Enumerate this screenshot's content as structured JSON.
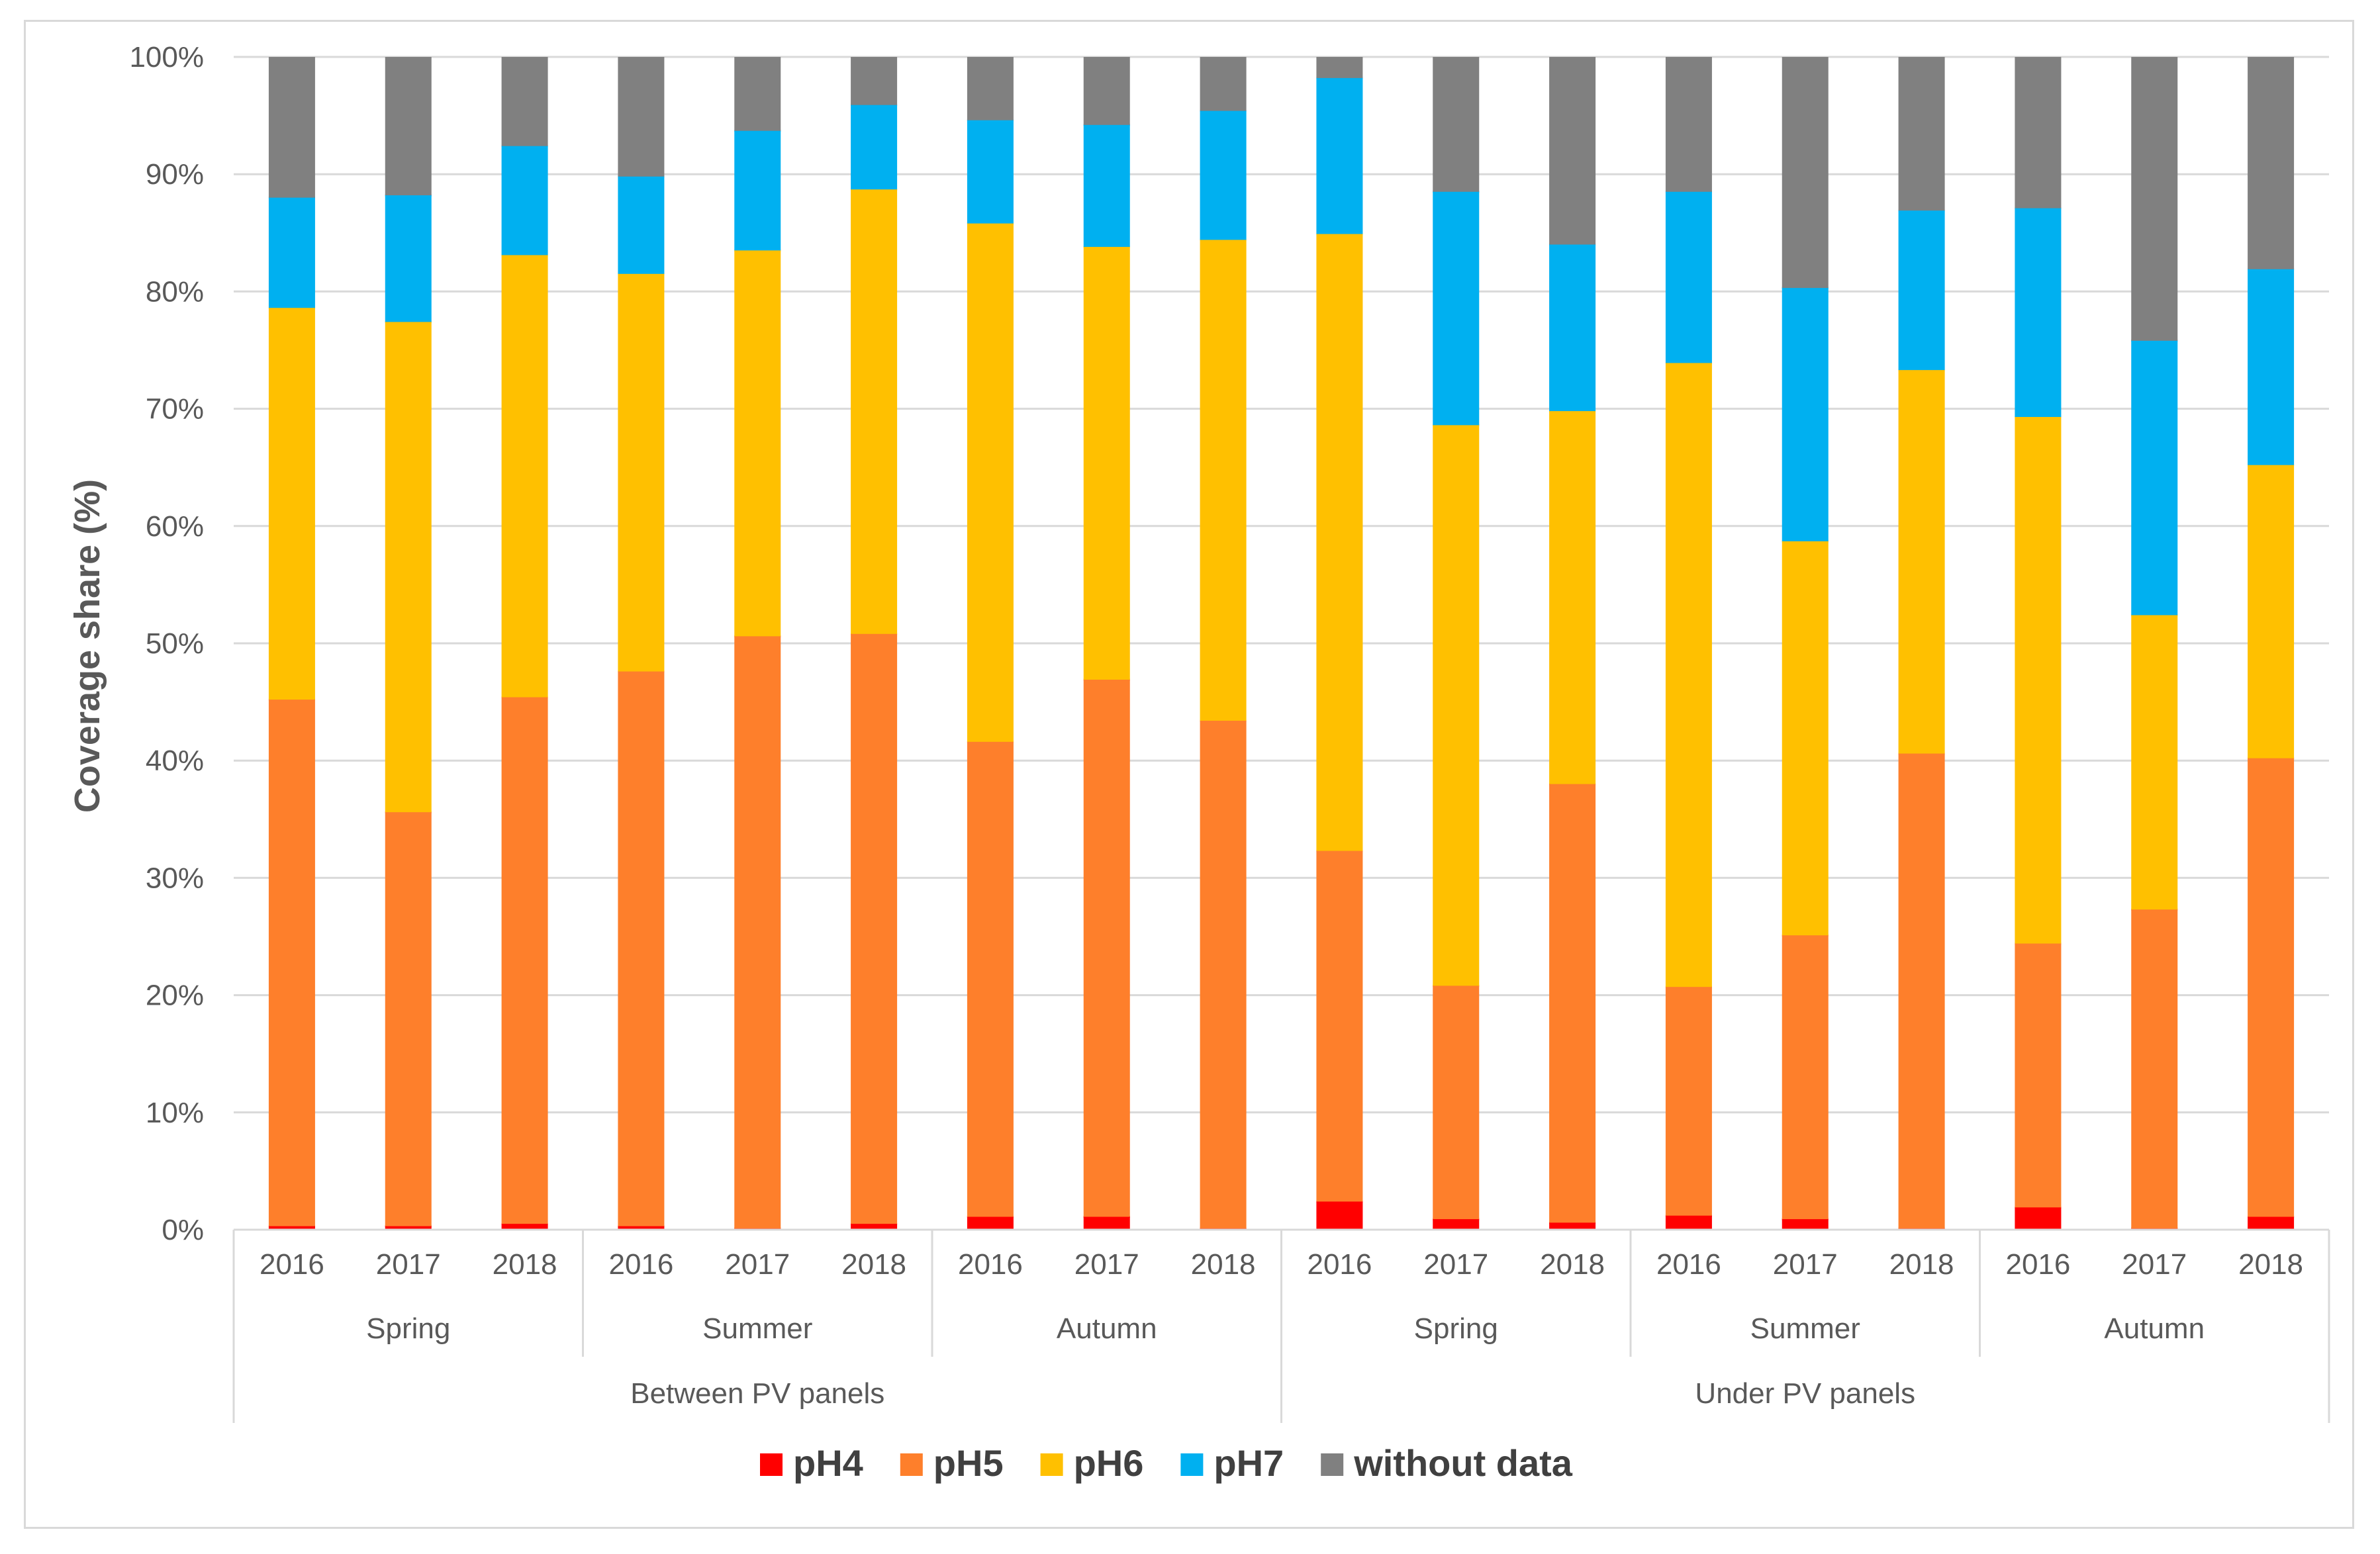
{
  "chart_data": {
    "type": "stacked-bar",
    "title": "",
    "xlabel": "",
    "ylabel": "Coverage share (%)",
    "ylim": [
      0,
      100
    ],
    "yticks": [
      "0%",
      "10%",
      "20%",
      "30%",
      "40%",
      "50%",
      "60%",
      "70%",
      "80%",
      "90%",
      "100%"
    ],
    "grid": true,
    "legend_position": "bottom",
    "categories": [
      "2016",
      "2017",
      "2018",
      "2016",
      "2017",
      "2018",
      "2016",
      "2017",
      "2018",
      "2016",
      "2017",
      "2018",
      "2016",
      "2017",
      "2018",
      "2016",
      "2017",
      "2018"
    ],
    "seasons": [
      "Spring",
      "Summer",
      "Autumn",
      "Spring",
      "Summer",
      "Autumn"
    ],
    "locations": [
      "Between PV panels",
      "Under PV panels"
    ],
    "series": [
      {
        "name": "pH4",
        "color": "#ff0000",
        "values": [
          0.3,
          0.3,
          0.5,
          0.3,
          0.1,
          0.5,
          1.1,
          1.1,
          0.1,
          2.4,
          0.9,
          0.6,
          1.2,
          0.9,
          0.1,
          1.9,
          0.1,
          1.1
        ]
      },
      {
        "name": "pH5",
        "color": "#fe7f2b",
        "values": [
          44.9,
          35.3,
          44.9,
          47.3,
          50.5,
          50.3,
          40.5,
          45.8,
          43.3,
          29.9,
          19.9,
          37.4,
          19.5,
          24.2,
          40.5,
          22.5,
          27.2,
          39.1
        ]
      },
      {
        "name": "pH6",
        "color": "#ffc000",
        "values": [
          33.4,
          41.8,
          37.7,
          33.9,
          32.9,
          37.9,
          44.2,
          36.9,
          41.0,
          52.6,
          47.8,
          31.8,
          53.2,
          33.6,
          32.7,
          44.9,
          25.1,
          25.0
        ]
      },
      {
        "name": "pH7",
        "color": "#00b0f0",
        "values": [
          9.4,
          10.8,
          9.3,
          8.3,
          10.2,
          7.2,
          8.8,
          10.4,
          11.0,
          13.3,
          19.9,
          14.2,
          14.6,
          21.6,
          13.6,
          17.8,
          23.4,
          16.7
        ]
      },
      {
        "name": "without data",
        "color": "#808080",
        "values": [
          12.0,
          11.8,
          7.6,
          10.2,
          6.3,
          4.1,
          5.4,
          5.8,
          4.6,
          1.8,
          11.5,
          16.0,
          11.5,
          19.7,
          13.1,
          12.9,
          24.2,
          18.1
        ]
      }
    ]
  }
}
